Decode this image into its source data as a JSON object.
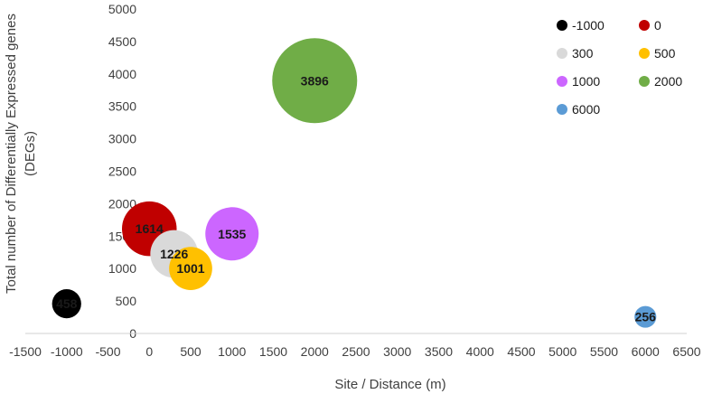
{
  "chart_data": {
    "type": "bubble",
    "title": "",
    "xlabel": "Site / Distance (m)",
    "ylabel_lines": [
      "Total number of Differentially Expressed genes",
      "(DEGs)"
    ],
    "xlim": [
      -1500,
      6500
    ],
    "ylim": [
      0,
      5000
    ],
    "xticks": [
      -1500,
      -1000,
      -500,
      0,
      500,
      1000,
      1500,
      2000,
      2500,
      3000,
      3500,
      4000,
      4500,
      5000,
      5500,
      6000,
      6500
    ],
    "yticks": [
      0,
      500,
      1000,
      1500,
      2000,
      2500,
      3000,
      3500,
      4000,
      4500,
      5000
    ],
    "grid": false,
    "legend_position": "top-right",
    "series": [
      {
        "name": "-1000",
        "x": -1000,
        "y": 458,
        "size": 458,
        "label": "458",
        "color": "#000000"
      },
      {
        "name": "0",
        "x": 0,
        "y": 1614,
        "size": 1614,
        "label": "1614",
        "color": "#C00000"
      },
      {
        "name": "300",
        "x": 300,
        "y": 1226,
        "size": 1226,
        "label": "1226",
        "color": "#D9D9D9"
      },
      {
        "name": "500",
        "x": 500,
        "y": 1001,
        "size": 1001,
        "label": "1001",
        "color": "#FFC000"
      },
      {
        "name": "1000",
        "x": 1000,
        "y": 1535,
        "size": 1535,
        "label": "1535",
        "color": "#CC66FF"
      },
      {
        "name": "2000",
        "x": 2000,
        "y": 3896,
        "size": 3896,
        "label": "3896",
        "color": "#70AD47"
      },
      {
        "name": "6000",
        "x": 6000,
        "y": 256,
        "size": 256,
        "label": "256",
        "color": "#5B9BD5"
      }
    ]
  }
}
